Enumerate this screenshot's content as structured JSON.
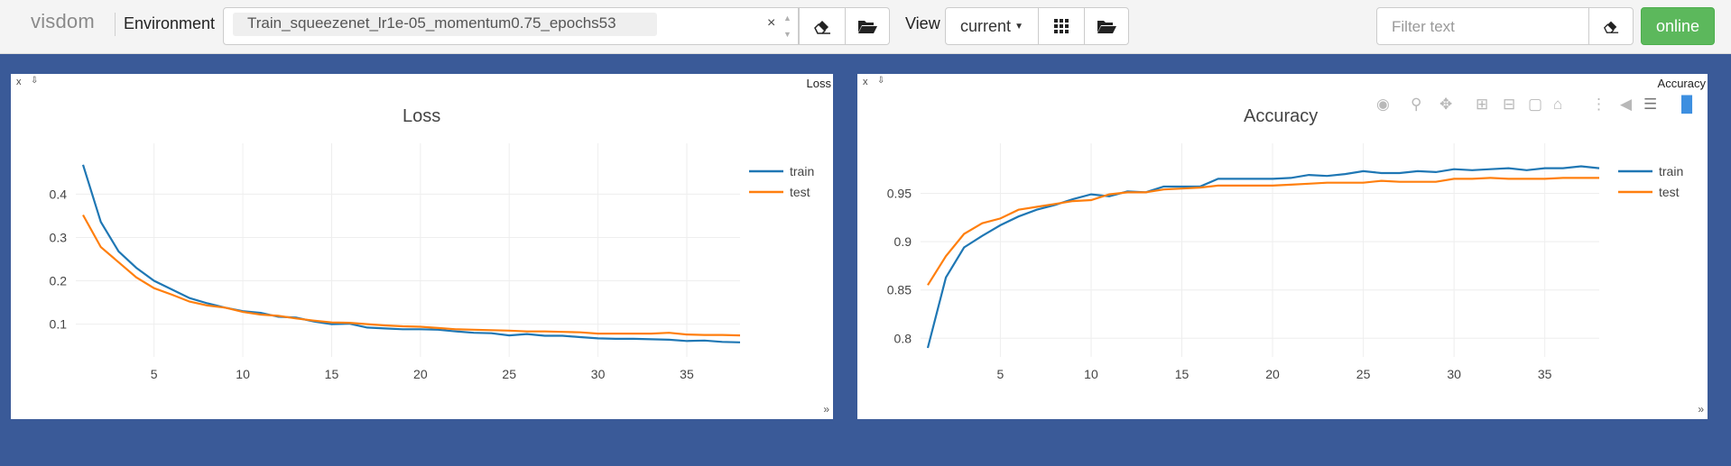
{
  "navbar": {
    "brand": "visdom",
    "env_label": "Environment",
    "env_value": "Train_squeezenet_lr1e-05_momentum0.75_epochs53",
    "env_clear": "×",
    "view_label": "View",
    "view_value": "current",
    "filter_placeholder": "Filter text",
    "status": "online"
  },
  "panes": [
    {
      "header_title": "Loss",
      "chart_data": {
        "type": "line",
        "title": "Loss",
        "xlim": [
          1,
          38
        ],
        "ylim": [
          0.045,
          0.48
        ],
        "xticks": [
          5,
          10,
          15,
          20,
          25,
          30,
          35
        ],
        "yticks": [
          0.1,
          0.2,
          0.3,
          0.4
        ],
        "ytick_labels": [
          "0.1",
          "0.2",
          "0.3",
          "0.4"
        ],
        "legend_position": "top-right",
        "series": [
          {
            "name": "train",
            "color": "#1f77b4",
            "x": [
              1,
              2,
              3,
              4,
              5,
              6,
              7,
              8,
              9,
              10,
              11,
              12,
              13,
              14,
              15,
              16,
              17,
              18,
              19,
              20,
              21,
              22,
              23,
              24,
              25,
              26,
              27,
              28,
              29,
              30,
              31,
              32,
              33,
              34,
              35,
              36,
              37,
              38
            ],
            "y": [
              0.468,
              0.336,
              0.268,
              0.23,
              0.2,
              0.18,
              0.16,
              0.148,
              0.138,
              0.13,
              0.126,
              0.117,
              0.115,
              0.106,
              0.1,
              0.101,
              0.092,
              0.09,
              0.088,
              0.088,
              0.087,
              0.083,
              0.08,
              0.079,
              0.074,
              0.077,
              0.073,
              0.073,
              0.07,
              0.067,
              0.066,
              0.066,
              0.065,
              0.064,
              0.061,
              0.062,
              0.059,
              0.058
            ]
          },
          {
            "name": "test",
            "color": "#ff7f0e",
            "x": [
              1,
              2,
              3,
              4,
              5,
              6,
              7,
              8,
              9,
              10,
              11,
              12,
              13,
              14,
              15,
              16,
              17,
              18,
              19,
              20,
              21,
              22,
              23,
              24,
              25,
              26,
              27,
              28,
              29,
              30,
              31,
              32,
              33,
              34,
              35,
              36,
              37,
              38
            ],
            "y": [
              0.352,
              0.278,
              0.243,
              0.208,
              0.183,
              0.168,
              0.152,
              0.143,
              0.138,
              0.128,
              0.122,
              0.119,
              0.113,
              0.108,
              0.104,
              0.103,
              0.1,
              0.097,
              0.095,
              0.094,
              0.091,
              0.088,
              0.087,
              0.086,
              0.085,
              0.083,
              0.083,
              0.082,
              0.081,
              0.078,
              0.078,
              0.078,
              0.078,
              0.08,
              0.076,
              0.075,
              0.075,
              0.074
            ]
          }
        ]
      }
    },
    {
      "header_title": "Accuracy",
      "chart_data": {
        "type": "line",
        "title": "Accuracy",
        "xlim": [
          1,
          38
        ],
        "ylim": [
          0.79,
          0.985
        ],
        "xticks": [
          5,
          10,
          15,
          20,
          25,
          30,
          35
        ],
        "yticks": [
          0.8,
          0.85,
          0.9,
          0.95
        ],
        "ytick_labels": [
          "0.8",
          "0.85",
          "0.9",
          "0.95"
        ],
        "legend_position": "top-right",
        "series": [
          {
            "name": "train",
            "color": "#1f77b4",
            "x": [
              1,
              2,
              3,
              4,
              5,
              6,
              7,
              8,
              9,
              10,
              11,
              12,
              13,
              14,
              15,
              16,
              17,
              18,
              19,
              20,
              21,
              22,
              23,
              24,
              25,
              26,
              27,
              28,
              29,
              30,
              31,
              32,
              33,
              34,
              35,
              36,
              37,
              38
            ],
            "y": [
              0.79,
              0.863,
              0.894,
              0.906,
              0.917,
              0.926,
              0.933,
              0.938,
              0.944,
              0.949,
              0.947,
              0.952,
              0.951,
              0.957,
              0.957,
              0.957,
              0.965,
              0.965,
              0.965,
              0.965,
              0.966,
              0.969,
              0.968,
              0.97,
              0.973,
              0.971,
              0.971,
              0.973,
              0.972,
              0.975,
              0.974,
              0.975,
              0.976,
              0.974,
              0.976,
              0.976,
              0.978,
              0.976
            ]
          },
          {
            "name": "test",
            "color": "#ff7f0e",
            "x": [
              1,
              2,
              3,
              4,
              5,
              6,
              7,
              8,
              9,
              10,
              11,
              12,
              13,
              14,
              15,
              16,
              17,
              18,
              19,
              20,
              21,
              22,
              23,
              24,
              25,
              26,
              27,
              28,
              29,
              30,
              31,
              32,
              33,
              34,
              35,
              36,
              37,
              38
            ],
            "y": [
              0.855,
              0.885,
              0.908,
              0.919,
              0.924,
              0.933,
              0.936,
              0.939,
              0.942,
              0.943,
              0.949,
              0.951,
              0.951,
              0.954,
              0.955,
              0.956,
              0.958,
              0.958,
              0.958,
              0.958,
              0.959,
              0.96,
              0.961,
              0.961,
              0.961,
              0.963,
              0.962,
              0.962,
              0.962,
              0.965,
              0.965,
              0.966,
              0.965,
              0.965,
              0.965,
              0.966,
              0.966,
              0.966
            ]
          }
        ]
      }
    }
  ],
  "modebar_icons": [
    "camera-icon",
    "zoom-icon",
    "pan-icon",
    "zoom-in-icon",
    "zoom-out-icon",
    "autoscale-icon",
    "home-icon",
    "spike-lines-icon",
    "hover-closest-icon",
    "hover-compare-icon",
    "plotly-logo-icon"
  ]
}
